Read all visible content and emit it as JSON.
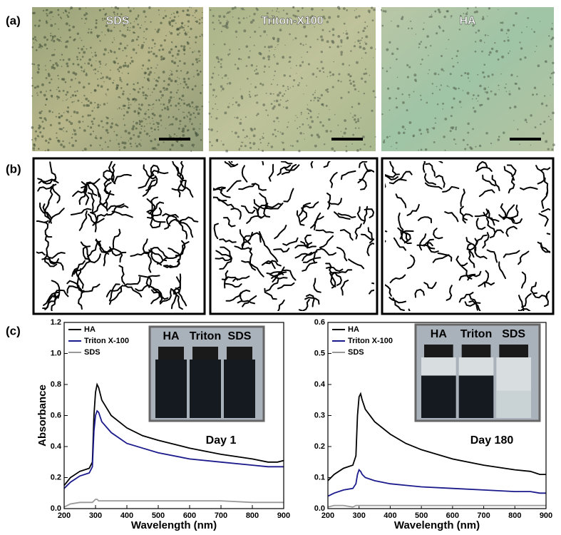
{
  "panel_labels": [
    "(a)",
    "(b)",
    "(c)"
  ],
  "photo_labels": [
    "SDS",
    "Triton-X100",
    "HA"
  ],
  "chart_data": [
    {
      "type": "line",
      "xlabel": "Wavelength (nm)",
      "ylabel": "Absorbance",
      "xlim": [
        200,
        900
      ],
      "xticks": [
        200,
        300,
        400,
        500,
        600,
        700,
        800,
        900
      ],
      "ylim": [
        0,
        1.2
      ],
      "yticks": [
        {
          "value": 0,
          "label": "0.0"
        },
        0.2,
        0.4,
        0.6,
        0.8,
        {
          "value": 1,
          "label": "1.0"
        },
        1.2
      ],
      "legend": "upper left",
      "inset_labels": [
        "HA",
        "Triton",
        "SDS"
      ],
      "annotation": "Day 1",
      "x": [
        200,
        220,
        250,
        280,
        290,
        295,
        300,
        305,
        310,
        320,
        350,
        400,
        450,
        500,
        600,
        700,
        800,
        850,
        880,
        900
      ],
      "series": [
        {
          "name": "HA",
          "color": "#000000",
          "values": [
            0.15,
            0.2,
            0.24,
            0.26,
            0.3,
            0.6,
            0.75,
            0.8,
            0.78,
            0.7,
            0.6,
            0.52,
            0.47,
            0.44,
            0.39,
            0.35,
            0.32,
            0.3,
            0.3,
            0.31
          ]
        },
        {
          "name": "Triton X-100",
          "color": "#1a1a8c",
          "values": [
            0.13,
            0.17,
            0.21,
            0.23,
            0.27,
            0.5,
            0.6,
            0.63,
            0.62,
            0.56,
            0.49,
            0.42,
            0.39,
            0.36,
            0.32,
            0.3,
            0.28,
            0.27,
            0.27,
            0.27
          ]
        },
        {
          "name": "SDS",
          "color": "#999999",
          "values": [
            0.01,
            0.03,
            0.04,
            0.04,
            0.04,
            0.05,
            0.06,
            0.06,
            0.05,
            0.05,
            0.05,
            0.05,
            0.05,
            0.05,
            0.05,
            0.05,
            0.04,
            0.04,
            0.04,
            0.04
          ]
        }
      ]
    },
    {
      "type": "line",
      "xlabel": "Wavelength (nm)",
      "xlim": [
        200,
        900
      ],
      "xticks": [
        200,
        300,
        400,
        500,
        600,
        700,
        800,
        900
      ],
      "ylim": [
        0,
        0.6
      ],
      "yticks": [
        {
          "value": 0,
          "label": "0.0"
        },
        0.1,
        0.2,
        0.3,
        0.4,
        0.5,
        0.6
      ],
      "legend": "upper left",
      "inset_labels": [
        "HA",
        "Triton",
        "SDS"
      ],
      "annotation": "Day 180",
      "x": [
        200,
        220,
        250,
        280,
        290,
        295,
        300,
        305,
        310,
        320,
        350,
        400,
        450,
        500,
        600,
        700,
        800,
        850,
        880,
        900
      ],
      "series": [
        {
          "name": "HA",
          "color": "#000000",
          "values": [
            0.09,
            0.11,
            0.13,
            0.14,
            0.17,
            0.3,
            0.36,
            0.37,
            0.35,
            0.32,
            0.28,
            0.24,
            0.21,
            0.19,
            0.16,
            0.14,
            0.125,
            0.12,
            0.11,
            0.11
          ]
        },
        {
          "name": "Triton X-100",
          "color": "#1a1a8c",
          "values": [
            0.04,
            0.05,
            0.06,
            0.065,
            0.08,
            0.11,
            0.125,
            0.12,
            0.11,
            0.1,
            0.09,
            0.08,
            0.075,
            0.07,
            0.065,
            0.06,
            0.055,
            0.055,
            0.05,
            0.05
          ]
        },
        {
          "name": "SDS",
          "color": "#999999",
          "values": [
            0.005,
            0.01,
            0.01,
            0.005,
            0.01,
            0.01,
            0.01,
            0.01,
            0.01,
            0.01,
            0.01,
            0.01,
            0.01,
            0.01,
            0.01,
            0.01,
            0.01,
            0.01,
            0.01,
            0.01
          ]
        }
      ]
    }
  ]
}
